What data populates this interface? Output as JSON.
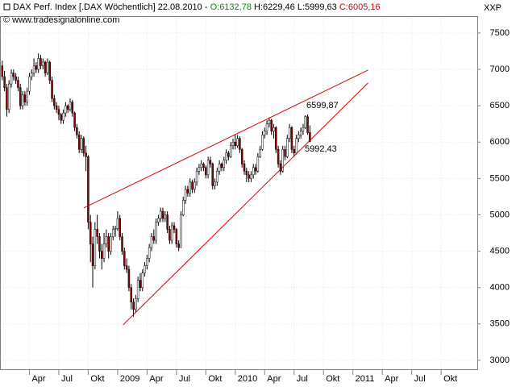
{
  "chart_data": {
    "type": "candlestick",
    "header": {
      "title": "DAX Perf. Index [.DAX Wöchentlich] 22.08.2010 -",
      "open": "O:6132,78",
      "high": "H:6229,46",
      "low": "L:5999,63",
      "close": "C:6005,16",
      "copyright": "© www.tradesignalonline.com",
      "corner": "XXP"
    },
    "up_color": "#ffffff",
    "down_color": "#8b0000",
    "wick_color": "#000000",
    "line_color": "#e00000",
    "label_color": "#c00000",
    "grid": true,
    "ylim": [
      2910,
      7710
    ],
    "yticks": [
      3000,
      3500,
      4000,
      4500,
      5000,
      5500,
      6000,
      6500,
      7000,
      7500
    ],
    "xlim": [
      -1,
      210
    ],
    "xticks": [
      {
        "value": 12,
        "label": "Apr"
      },
      {
        "value": 25,
        "label": "Jul"
      },
      {
        "value": 38,
        "label": "Okt"
      },
      {
        "value": 51,
        "label": "2009"
      },
      {
        "value": 64,
        "label": "Apr"
      },
      {
        "value": 77,
        "label": "Jul"
      },
      {
        "value": 90,
        "label": "Okt"
      },
      {
        "value": 103,
        "label": "2010"
      },
      {
        "value": 116,
        "label": "Apr"
      },
      {
        "value": 129,
        "label": "Jul"
      },
      {
        "value": 142,
        "label": "Okt"
      },
      {
        "value": 155,
        "label": "2011"
      },
      {
        "value": 168,
        "label": "Apr"
      },
      {
        "value": 181,
        "label": "Jul"
      },
      {
        "value": 194,
        "label": "Okt"
      }
    ],
    "candles": [
      [
        7050,
        7120,
        6850,
        6900
      ],
      [
        6900,
        6980,
        6700,
        6750
      ],
      [
        6750,
        6800,
        6350,
        6450
      ],
      [
        6450,
        6850,
        6400,
        6800
      ],
      [
        6800,
        7000,
        6750,
        6950
      ],
      [
        6950,
        7000,
        6850,
        6900
      ],
      [
        6900,
        6950,
        6800,
        6850
      ],
      [
        6850,
        6900,
        6700,
        6750
      ],
      [
        6750,
        6800,
        6450,
        6500
      ],
      [
        6500,
        6700,
        6450,
        6650
      ],
      [
        6650,
        6700,
        6500,
        6550
      ],
      [
        6550,
        6750,
        6500,
        6700
      ],
      [
        6700,
        6950,
        6650,
        6900
      ],
      [
        6900,
        7000,
        6850,
        6950
      ],
      [
        6950,
        7150,
        6900,
        7050
      ],
      [
        7050,
        7100,
        6950,
        7000
      ],
      [
        7000,
        7220,
        6950,
        7150
      ],
      [
        7150,
        7200,
        7000,
        7050
      ],
      [
        7050,
        7150,
        7000,
        7100
      ],
      [
        7100,
        7120,
        6900,
        6950
      ],
      [
        6950,
        7150,
        6920,
        7100
      ],
      [
        7100,
        7120,
        6800,
        6850
      ],
      [
        6850,
        6900,
        6550,
        6600
      ],
      [
        6600,
        6650,
        6450,
        6500
      ],
      [
        6500,
        6550,
        6400,
        6450
      ],
      [
        6450,
        6500,
        6300,
        6380
      ],
      [
        6380,
        6400,
        6250,
        6300
      ],
      [
        6300,
        6450,
        6250,
        6400
      ],
      [
        6400,
        6550,
        6350,
        6500
      ],
      [
        6500,
        6520,
        6400,
        6450
      ],
      [
        6450,
        6600,
        6420,
        6550
      ],
      [
        6550,
        6580,
        6350,
        6400
      ],
      [
        6400,
        6420,
        6150,
        6200
      ],
      [
        6200,
        6250,
        6050,
        6100
      ],
      [
        6100,
        6150,
        5850,
        5900
      ],
      [
        5900,
        6100,
        5850,
        6050
      ],
      [
        6050,
        6080,
        5800,
        5850
      ],
      [
        5850,
        5950,
        5600,
        5800
      ],
      [
        5800,
        5820,
        4800,
        4900
      ],
      [
        4900,
        5000,
        4350,
        4600
      ],
      [
        4600,
        4700,
        4000,
        4300
      ],
      [
        4300,
        4900,
        4250,
        4800
      ],
      [
        4800,
        5000,
        4600,
        4700
      ],
      [
        4700,
        4750,
        4400,
        4500
      ],
      [
        4500,
        4600,
        4250,
        4400
      ],
      [
        4400,
        4750,
        4350,
        4600
      ],
      [
        4600,
        4800,
        4550,
        4700
      ],
      [
        4700,
        4750,
        4400,
        4500
      ],
      [
        4500,
        4750,
        4450,
        4700
      ],
      [
        4700,
        4850,
        4650,
        4800
      ],
      [
        4800,
        4850,
        4700,
        4810
      ],
      [
        4810,
        5050,
        4780,
        4950
      ],
      [
        4950,
        5000,
        4650,
        4700
      ],
      [
        4700,
        4750,
        4450,
        4500
      ],
      [
        4500,
        4550,
        4250,
        4300
      ],
      [
        4300,
        4400,
        4200,
        4250
      ],
      [
        4250,
        4300,
        3950,
        4000
      ],
      [
        4000,
        4050,
        3700,
        3800
      ],
      [
        3800,
        3850,
        3600,
        3700
      ],
      [
        3700,
        3900,
        3650,
        3850
      ],
      [
        3850,
        4150,
        3800,
        4100
      ],
      [
        4100,
        4200,
        3950,
        4000
      ],
      [
        4000,
        4250,
        3950,
        4200
      ],
      [
        4200,
        4350,
        4150,
        4300
      ],
      [
        4300,
        4450,
        4250,
        4400
      ],
      [
        4400,
        4600,
        4350,
        4550
      ],
      [
        4550,
        4750,
        4500,
        4700
      ],
      [
        4700,
        4800,
        4600,
        4650
      ],
      [
        4650,
        4950,
        4600,
        4900
      ],
      [
        4900,
        5000,
        4850,
        4950
      ],
      [
        4950,
        5100,
        4900,
        5050
      ],
      [
        5050,
        5100,
        4900,
        4950
      ],
      [
        4950,
        5050,
        4900,
        5000
      ],
      [
        5000,
        5050,
        4750,
        4800
      ],
      [
        4800,
        4850,
        4600,
        4650
      ],
      [
        4650,
        4900,
        4600,
        4850
      ],
      [
        4850,
        4900,
        4750,
        4800
      ],
      [
        4800,
        4820,
        4550,
        4600
      ],
      [
        4600,
        4650,
        4500,
        4550
      ],
      [
        4550,
        5050,
        4550,
        5000
      ],
      [
        5000,
        5250,
        4980,
        5200
      ],
      [
        5200,
        5400,
        5150,
        5350
      ],
      [
        5350,
        5400,
        5250,
        5300
      ],
      [
        5300,
        5500,
        5250,
        5450
      ],
      [
        5450,
        5480,
        5300,
        5350
      ],
      [
        5350,
        5500,
        5300,
        5450
      ],
      [
        5450,
        5650,
        5400,
        5600
      ],
      [
        5600,
        5700,
        5550,
        5650
      ],
      [
        5650,
        5750,
        5600,
        5700
      ],
      [
        5700,
        5720,
        5600,
        5650
      ],
      [
        5650,
        5680,
        5500,
        5550
      ],
      [
        5550,
        5800,
        5500,
        5750
      ],
      [
        5750,
        5800,
        5650,
        5700
      ],
      [
        5700,
        5720,
        5350,
        5400
      ],
      [
        5400,
        5500,
        5350,
        5450
      ],
      [
        5450,
        5650,
        5400,
        5600
      ],
      [
        5600,
        5750,
        5550,
        5700
      ],
      [
        5700,
        5720,
        5600,
        5650
      ],
      [
        5650,
        5800,
        5600,
        5750
      ],
      [
        5750,
        5900,
        5700,
        5850
      ],
      [
        5850,
        5880,
        5750,
        5800
      ],
      [
        5800,
        6000,
        5780,
        5950
      ],
      [
        5950,
        6050,
        5900,
        6000
      ],
      [
        6000,
        6100,
        5900,
        5950
      ],
      [
        5950,
        6100,
        5920,
        6050
      ],
      [
        6050,
        6080,
        5850,
        5900
      ],
      [
        5900,
        5920,
        5650,
        5700
      ],
      [
        5700,
        5750,
        5550,
        5600
      ],
      [
        5600,
        5650,
        5450,
        5550
      ],
      [
        5550,
        5600,
        5450,
        5500
      ],
      [
        5500,
        5600,
        5450,
        5550
      ],
      [
        5550,
        5700,
        5500,
        5650
      ],
      [
        5650,
        5700,
        5550,
        5600
      ],
      [
        5600,
        5850,
        5580,
        5800
      ],
      [
        5800,
        5950,
        5780,
        5900
      ],
      [
        5900,
        6150,
        5880,
        6100
      ],
      [
        6100,
        6200,
        6050,
        6150
      ],
      [
        6150,
        6300,
        6100,
        6250
      ],
      [
        6250,
        6340,
        6200,
        6300
      ],
      [
        6300,
        6320,
        6100,
        6150
      ],
      [
        6150,
        6250,
        6050,
        6200
      ],
      [
        6200,
        6220,
        5850,
        5900
      ],
      [
        5900,
        5950,
        5650,
        5700
      ],
      [
        5700,
        5750,
        5550,
        5600
      ],
      [
        5600,
        5950,
        5580,
        5900
      ],
      [
        5900,
        5950,
        5750,
        5800
      ],
      [
        5800,
        6100,
        5780,
        6050
      ],
      [
        6050,
        6250,
        6000,
        6200
      ],
      [
        6200,
        6220,
        5850,
        5900
      ],
      [
        5900,
        5950,
        5800,
        5850
      ],
      [
        5850,
        6100,
        5830,
        6050
      ],
      [
        6050,
        6150,
        6000,
        6100
      ],
      [
        6100,
        6200,
        6050,
        6150
      ],
      [
        6150,
        6250,
        6100,
        6200
      ],
      [
        6200,
        6370,
        6180,
        6350
      ],
      [
        6350,
        6380,
        6100,
        6130
      ],
      [
        6132.78,
        6229.46,
        5999.63,
        6005.16
      ]
    ],
    "trendlines": [
      {
        "start": [
          36,
          5094
        ],
        "end": [
          161.7,
          6990
        ]
      },
      {
        "start": [
          53.4,
          3487
        ],
        "end": [
          161.7,
          6813
        ]
      }
    ],
    "annotations": [
      "6599,87",
      "5992,43"
    ]
  }
}
